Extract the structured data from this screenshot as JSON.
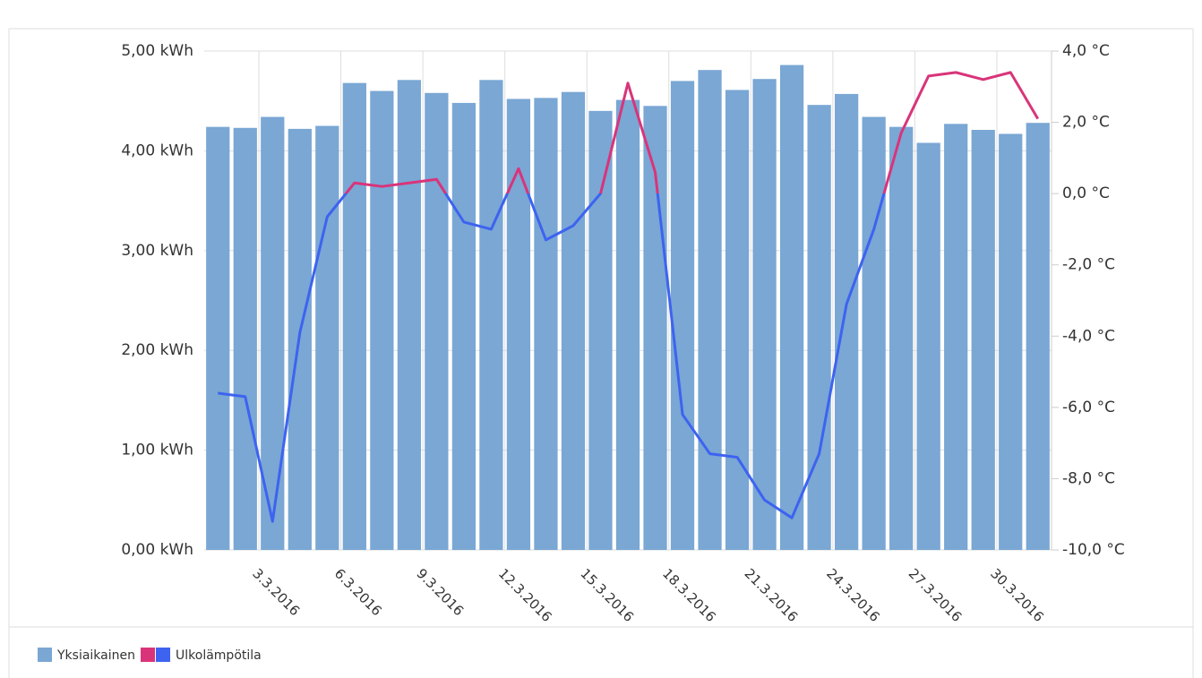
{
  "chart_data": {
    "type": "bar_line",
    "categories": [
      null,
      null,
      "3.3.2016",
      null,
      null,
      "6.3.2016",
      null,
      null,
      "9.3.2016",
      null,
      null,
      "12.3.2016",
      null,
      null,
      "15.3.2016",
      null,
      null,
      "18.3.2016",
      null,
      null,
      "21.3.2016",
      null,
      null,
      "24.3.2016",
      null,
      null,
      "27.3.2016",
      null,
      null,
      "30.3.2016",
      null
    ],
    "category_colors": [
      null,
      null,
      "#333333",
      null,
      null,
      "#d0204a",
      null,
      null,
      "#333333",
      null,
      null,
      "#d0204a",
      null,
      null,
      "#333333",
      null,
      null,
      "#333333",
      null,
      null,
      "#333333",
      null,
      null,
      "#333333",
      null,
      null,
      "#d0204a",
      null,
      null,
      "#333333",
      null
    ],
    "series": [
      {
        "name": "Yksiaikainen",
        "color": "#7aa7d4",
        "type": "bar",
        "values": [
          4.24,
          4.23,
          4.34,
          4.22,
          4.25,
          4.68,
          4.6,
          4.71,
          4.58,
          4.48,
          4.71,
          4.52,
          4.53,
          4.59,
          4.4,
          4.51,
          4.45,
          4.7,
          4.81,
          4.61,
          4.72,
          4.86,
          4.46,
          4.57,
          4.34,
          4.24,
          4.08,
          4.27,
          4.21,
          4.17,
          4.28
        ]
      },
      {
        "name": "Ulkolämpötila",
        "color": "#d9347a",
        "negative_color": "#3d63f0",
        "threshold": 0,
        "type": "line",
        "axis": "y2",
        "values": [
          -5.6,
          -5.7,
          -9.2,
          -3.9,
          -0.65,
          0.3,
          0.2,
          0.3,
          0.4,
          -0.8,
          -1.0,
          0.7,
          -1.3,
          -0.9,
          0.0,
          3.1,
          0.6,
          -6.2,
          -7.3,
          -7.4,
          -8.6,
          -9.1,
          -7.3,
          -3.1,
          -1.0,
          1.7,
          3.3,
          3.4,
          3.2,
          3.4,
          2.1
        ]
      }
    ],
    "ylim": [
      0,
      5
    ],
    "yticks": [
      {
        "value": 0,
        "label": "0,00 kWh"
      },
      {
        "value": 1,
        "label": "1,00 kWh"
      },
      {
        "value": 2,
        "label": "2,00 kWh"
      },
      {
        "value": 3,
        "label": "3,00 kWh"
      },
      {
        "value": 4,
        "label": "4,00 kWh"
      },
      {
        "value": 5,
        "label": "5,00 kWh"
      }
    ],
    "y2lim": [
      -10,
      4
    ],
    "y2ticks": [
      {
        "value": -10,
        "label": "-10,0 °C"
      },
      {
        "value": -8,
        "label": "-8,0 °C"
      },
      {
        "value": -6,
        "label": "-6,0 °C"
      },
      {
        "value": -4,
        "label": "-4,0 °C"
      },
      {
        "value": -2,
        "label": "-2,0 °C"
      },
      {
        "value": 0,
        "label": "0,0 °C"
      },
      {
        "value": 2,
        "label": "2,0 °C"
      },
      {
        "value": 4,
        "label": "4,0 °C"
      }
    ],
    "grid": true
  }
}
